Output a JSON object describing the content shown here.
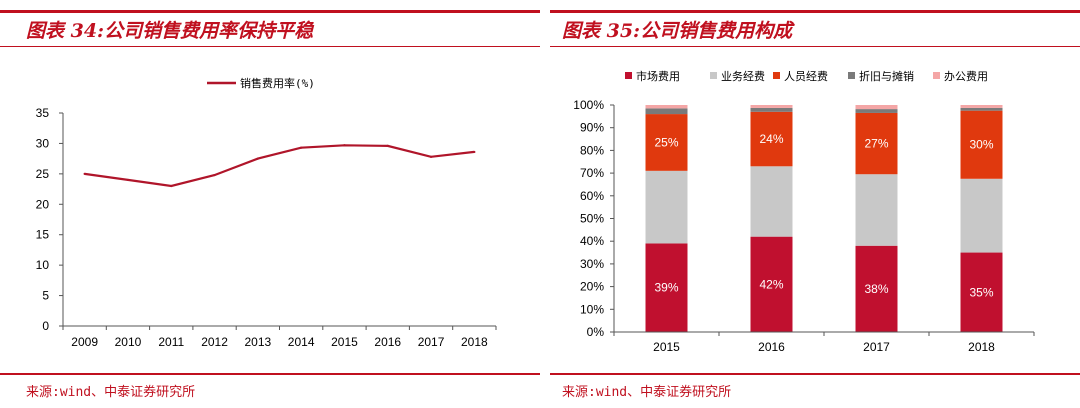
{
  "left": {
    "title": "图表 34:公司销售费用率保持平稳",
    "source": "来源:wind、中泰证券研究所",
    "colors": {
      "line": "#b0152a"
    }
  },
  "right": {
    "title": "图表 35:公司销售费用构成",
    "source": "来源:wind、中泰证券研究所",
    "colors": {
      "市场费用": "#c0102f",
      "业务经费": "#c8c8c8",
      "人员经费": "#e0390e",
      "折旧与摊销": "#7a7a7a",
      "办公费用": "#f4a6a6"
    }
  },
  "chart_data": [
    {
      "type": "line",
      "title": "",
      "xlabel": "",
      "ylabel": "",
      "x": [
        "2009",
        "2010",
        "2011",
        "2012",
        "2013",
        "2014",
        "2015",
        "2016",
        "2017",
        "2018"
      ],
      "series": [
        {
          "name": "销售费用率(%)",
          "values": [
            25.0,
            24.0,
            23.0,
            24.8,
            27.5,
            29.3,
            29.7,
            29.6,
            27.8,
            28.6
          ]
        }
      ],
      "ylim": [
        0,
        35
      ],
      "yticks": [
        "0",
        "5",
        "10",
        "15",
        "20",
        "25",
        "30",
        "35"
      ],
      "grid": false,
      "legend": "top-center"
    },
    {
      "type": "bar",
      "stacked": true,
      "percent": true,
      "title": "",
      "xlabel": "",
      "ylabel": "",
      "categories": [
        "2015",
        "2016",
        "2017",
        "2018"
      ],
      "series": [
        {
          "name": "市场费用",
          "values": [
            39,
            42,
            38,
            35
          ],
          "labels": [
            "39%",
            "42%",
            "38%",
            "35%"
          ]
        },
        {
          "name": "业务经费",
          "values": [
            32,
            31,
            31.5,
            32.5
          ]
        },
        {
          "name": "人员经费",
          "values": [
            25,
            24,
            27,
            30
          ],
          "labels": [
            "25%",
            "24%",
            "27%",
            "30%"
          ]
        },
        {
          "name": "折旧与摊销",
          "values": [
            2.5,
            1.7,
            1.7,
            1.2
          ]
        },
        {
          "name": "办公费用",
          "values": [
            1.5,
            1.3,
            1.8,
            1.3
          ]
        }
      ],
      "ylim": [
        0,
        100
      ],
      "yticks": [
        "0%",
        "10%",
        "20%",
        "30%",
        "40%",
        "50%",
        "60%",
        "70%",
        "80%",
        "90%",
        "100%"
      ],
      "grid": false,
      "legend": "top"
    }
  ]
}
